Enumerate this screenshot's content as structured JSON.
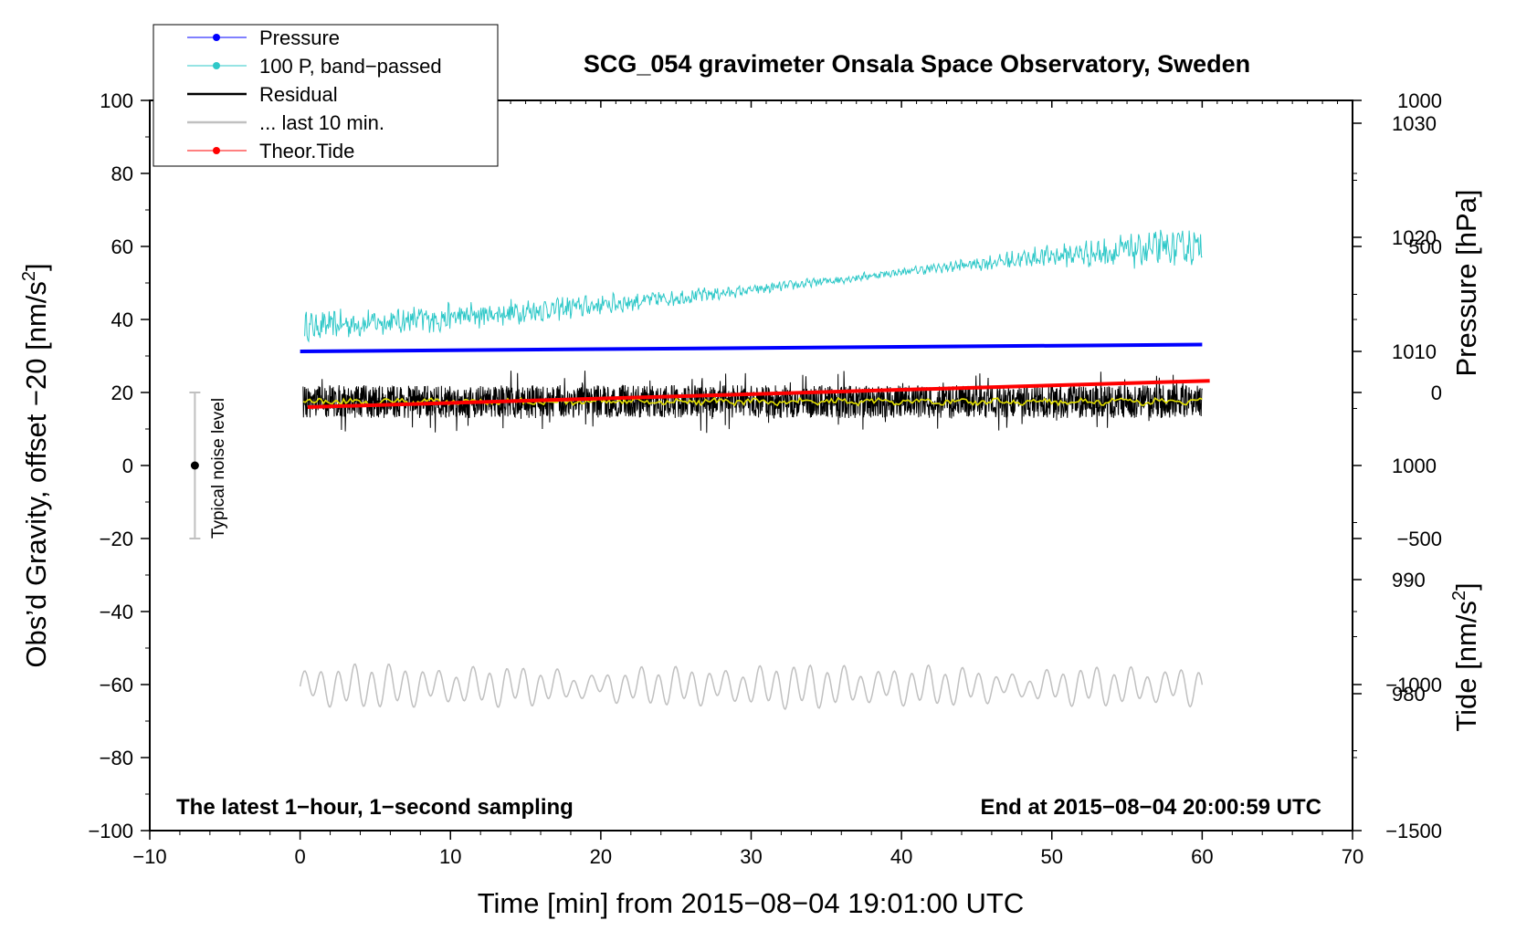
{
  "chart_data": {
    "type": "line",
    "title": "SCG_054 gravimeter Onsala Space Observatory, Sweden",
    "xlabel": "Time [min] from 2015−08−04 19:01:00 UTC",
    "ylabel": "Obs’d Gravity, offset −20 [nm/s",
    "ylabel_sup": "2",
    "ylabel_end": "]",
    "xlim": [
      -10,
      70
    ],
    "ylim": [
      -100,
      100
    ],
    "xticks": [
      -10,
      0,
      10,
      20,
      30,
      40,
      50,
      60,
      70
    ],
    "xtick_labels": [
      "−10",
      "0",
      "10",
      "20",
      "30",
      "40",
      "50",
      "60",
      "70"
    ],
    "yticks": [
      -100,
      -80,
      -60,
      -40,
      -20,
      0,
      20,
      40,
      60,
      80,
      100
    ],
    "ytick_labels": [
      "−100",
      "−80",
      "−60",
      "−40",
      "−20",
      "0",
      "20",
      "40",
      "60",
      "80",
      "100"
    ],
    "right_pressure_axis": {
      "label": "Pressure [hPa]",
      "range": [
        968,
        1032
      ],
      "ticks": [
        980,
        990,
        1000,
        1010,
        1020,
        1030
      ],
      "tick_labels": [
        "980",
        "990",
        "1000",
        "1010",
        "1020",
        "1030"
      ]
    },
    "right_tide_axis": {
      "label": "Tide [nm/s",
      "label_sup": "2",
      "label_end": "]",
      "range": [
        -1500,
        1000
      ],
      "ticks": [
        -1500,
        -1000,
        -500,
        0,
        500,
        1000
      ],
      "tick_labels": [
        "−1500",
        "−1000",
        "−500",
        "0",
        "500",
        "1000"
      ]
    },
    "series": [
      {
        "name": "Pressure",
        "color": "#0000ff",
        "style": "line+dots",
        "x": [
          0,
          60
        ],
        "pressure_hPa": [
          1010.0,
          1010.6
        ]
      },
      {
        "name": "100 P, band−passed",
        "color": "#2ec8c8",
        "style": "noisy",
        "x_start": 0.3,
        "x_end": 60,
        "trend_x": [
          0.3,
          10,
          20,
          30,
          40,
          50,
          56,
          60
        ],
        "trend_y": [
          38,
          40.5,
          44,
          48,
          53,
          57.5,
          59,
          60
        ],
        "amplitude": [
          4,
          4,
          3,
          1.5,
          1,
          3,
          5,
          5
        ]
      },
      {
        "name": "Residual",
        "color": "#000000",
        "style": "noisy",
        "x_start": 0.2,
        "x_end": 60,
        "mean": 17.5,
        "amplitude": 4.5,
        "smoothed_color": "#e2df00"
      },
      {
        "name": "... last 10 min.",
        "color": "#c0c0c0",
        "style": "oscillation",
        "x_start": 0,
        "x_end": 60,
        "mean": -60.5,
        "amplitude": 4.5
      },
      {
        "name": "Theor.Tide",
        "color": "#ff0000",
        "style": "line+dots",
        "x": [
          0.5,
          60.5
        ],
        "tide_nms2": [
          -50,
          40
        ]
      }
    ],
    "noise_bar": {
      "label": "Typical noise level",
      "x": -7,
      "center": 0,
      "low": -20,
      "high": 20
    },
    "annotations": {
      "left_note": "The latest 1−hour, 1−second sampling",
      "right_note": "End at 2015−08−04 20:00:59 UTC"
    },
    "legend_position": "top-left"
  }
}
